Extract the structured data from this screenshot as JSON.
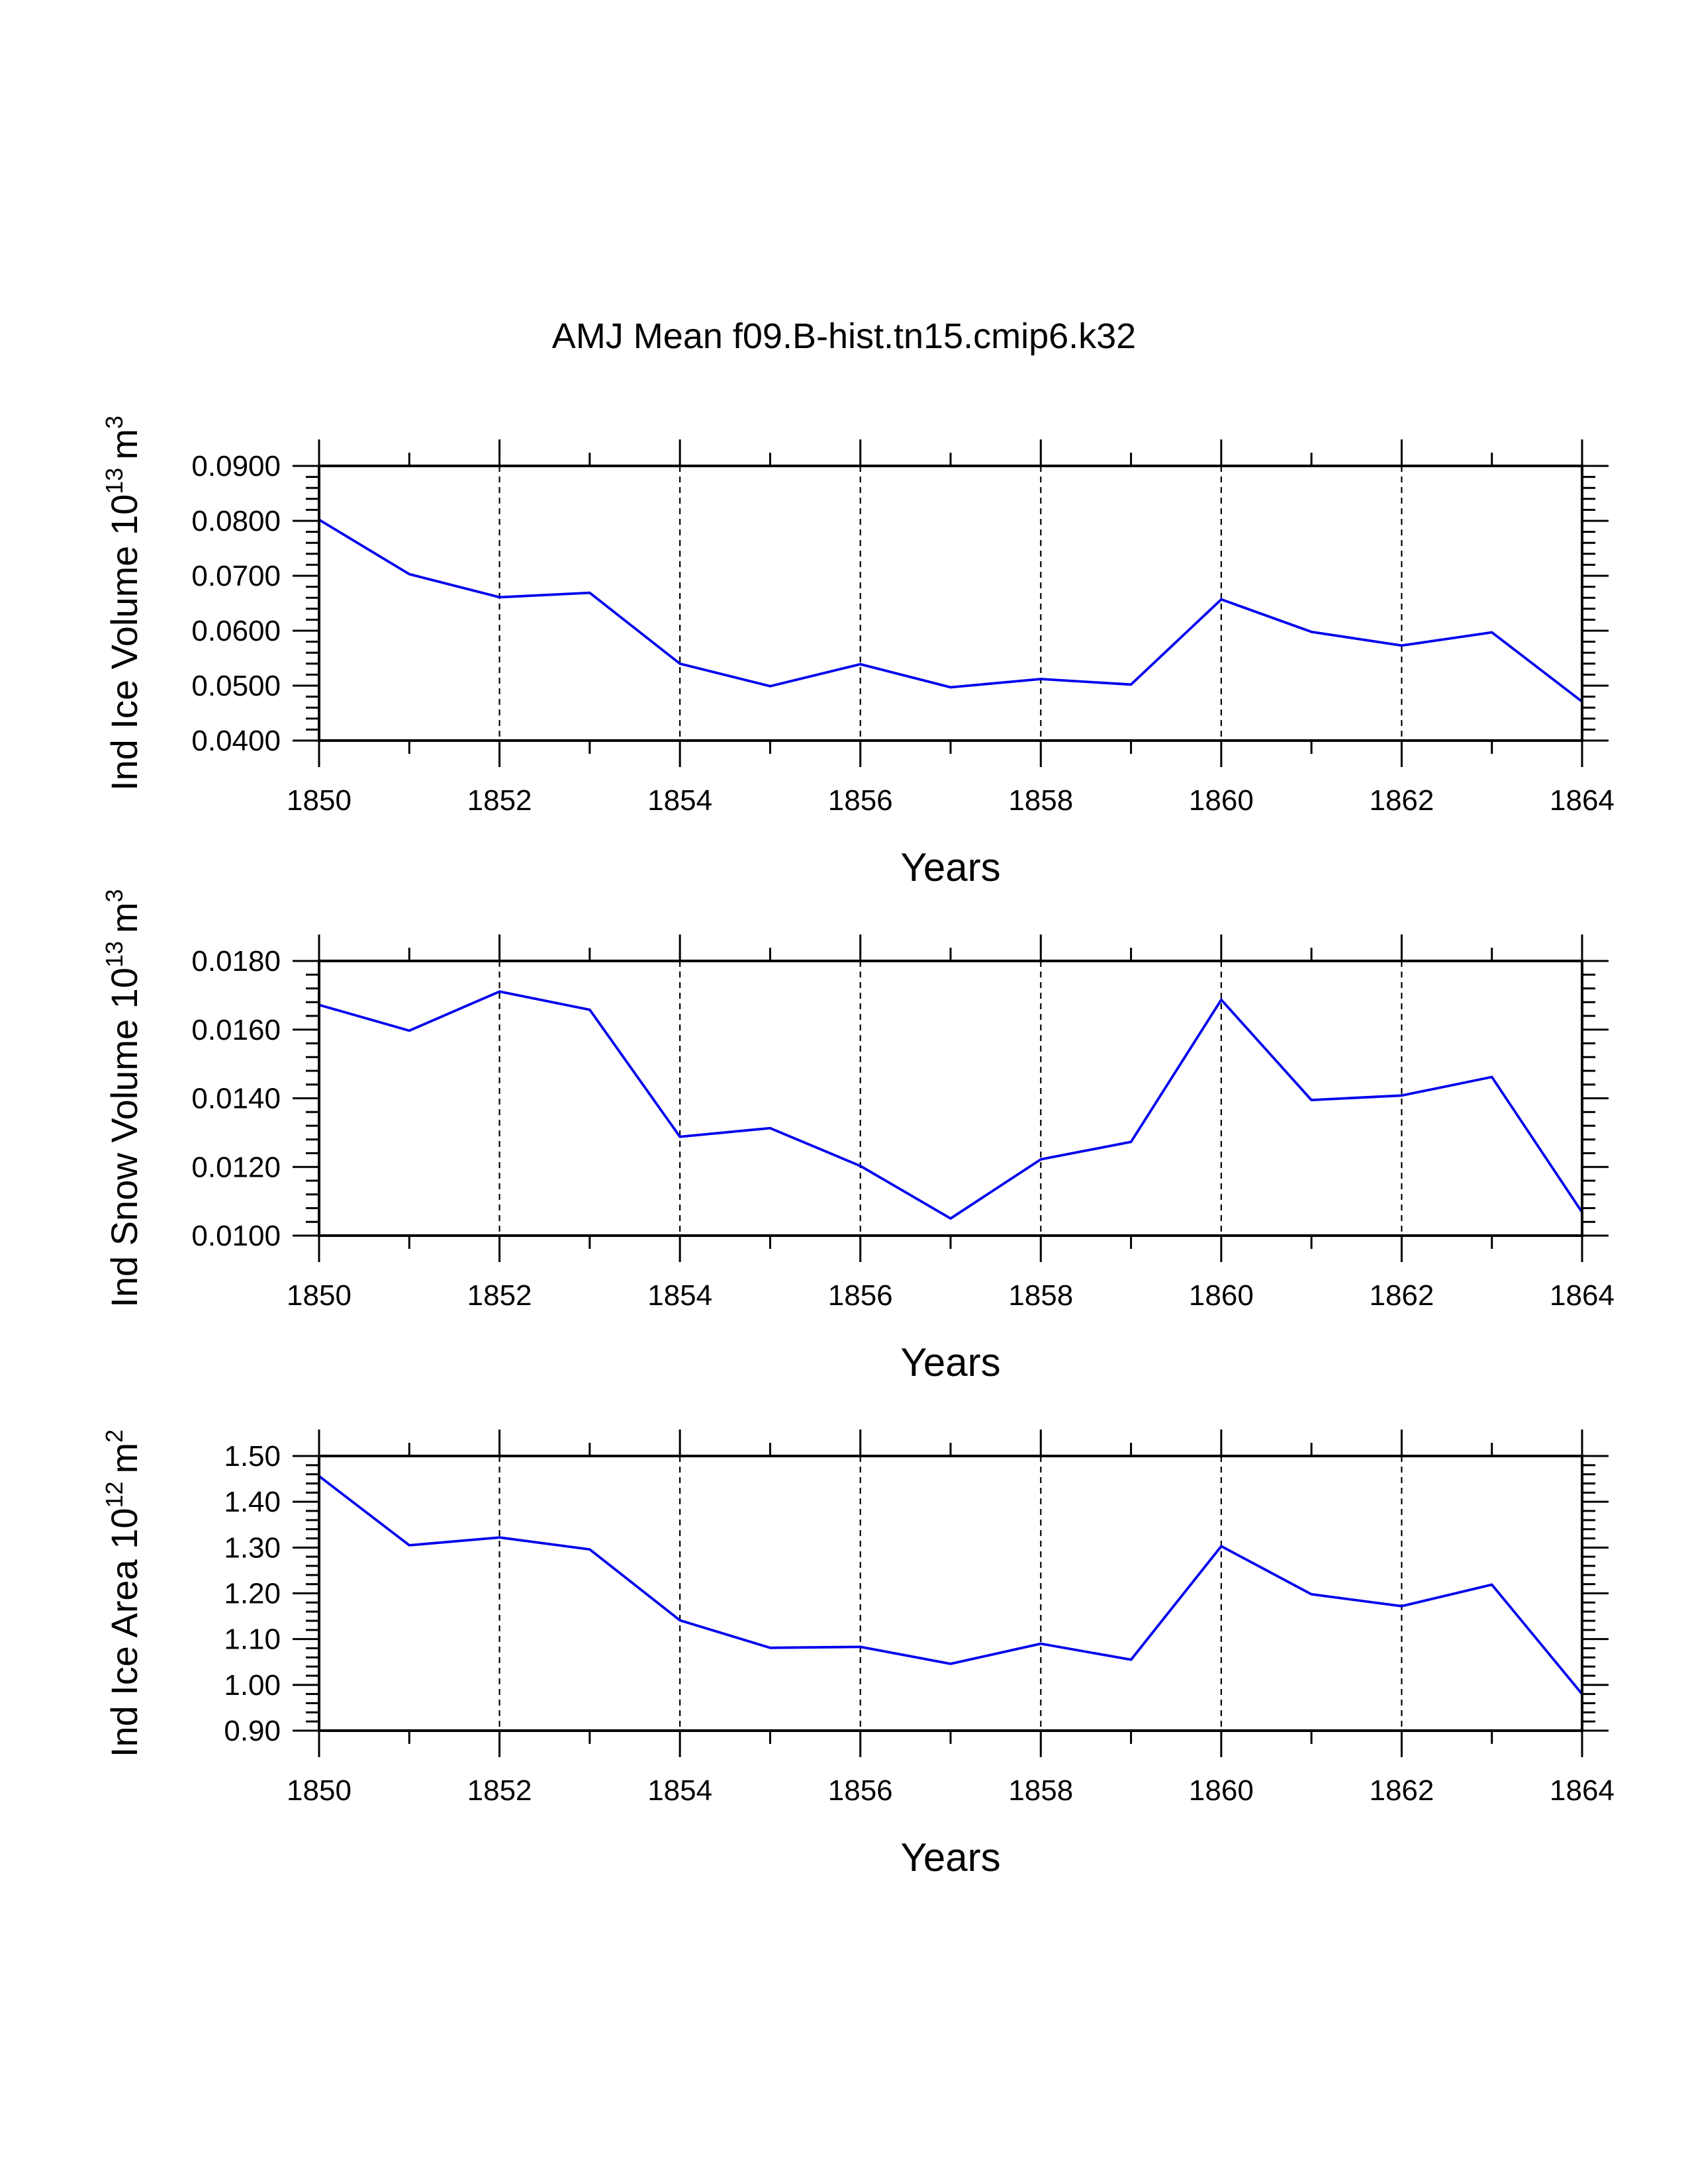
{
  "title": "AMJ Mean f09.B-hist.tn15.cmip6.k32",
  "colors": {
    "line": "#0000ee",
    "axis": "#000000",
    "background": "#ffffff"
  },
  "chart_data": [
    {
      "type": "line",
      "ylabel": {
        "prefix": "Ind Ice Volume 10",
        "exp": "13",
        "unit": "m",
        "unit_exp": "3"
      },
      "xlabel": "Years",
      "xlim": [
        1850,
        1864
      ],
      "xticks": [
        1850,
        1852,
        1854,
        1856,
        1858,
        1860,
        1862,
        1864
      ],
      "ylim": [
        0.04,
        0.09
      ],
      "yticks": [
        "0.0400",
        "0.0500",
        "0.0600",
        "0.0700",
        "0.0800",
        "0.0900"
      ],
      "grid": "vertical-dashed",
      "x": [
        1850,
        1851,
        1852,
        1853,
        1854,
        1855,
        1856,
        1857,
        1858,
        1859,
        1860,
        1861,
        1862,
        1863,
        1864
      ],
      "series": [
        {
          "name": "Ind Ice Volume",
          "values": [
            0.0802,
            0.0703,
            0.0661,
            0.0669,
            0.054,
            0.0499,
            0.0539,
            0.0497,
            0.0512,
            0.0502,
            0.0657,
            0.0598,
            0.0573,
            0.0597,
            0.0471
          ]
        }
      ]
    },
    {
      "type": "line",
      "ylabel": {
        "prefix": "Ind Snow Volume 10",
        "exp": "13",
        "unit": "m",
        "unit_exp": "3"
      },
      "xlabel": "Years",
      "xlim": [
        1850,
        1864
      ],
      "xticks": [
        1850,
        1852,
        1854,
        1856,
        1858,
        1860,
        1862,
        1864
      ],
      "ylim": [
        0.01,
        0.018
      ],
      "yticks": [
        "0.0100",
        "0.0120",
        "0.0140",
        "0.0160",
        "0.0180"
      ],
      "grid": "vertical-dashed",
      "x": [
        1850,
        1851,
        1852,
        1853,
        1854,
        1855,
        1856,
        1857,
        1858,
        1859,
        1860,
        1861,
        1862,
        1863,
        1864
      ],
      "series": [
        {
          "name": "Ind Snow Volume",
          "values": [
            0.01672,
            0.01597,
            0.01711,
            0.01658,
            0.01288,
            0.01313,
            0.01203,
            0.0105,
            0.01222,
            0.01273,
            0.01687,
            0.01395,
            0.01408,
            0.01462,
            0.01068
          ]
        }
      ]
    },
    {
      "type": "line",
      "ylabel": {
        "prefix": "Ind Ice Area 10",
        "exp": "12",
        "unit": "m",
        "unit_exp": "2"
      },
      "xlabel": "Years",
      "xlim": [
        1850,
        1864
      ],
      "xticks": [
        1850,
        1852,
        1854,
        1856,
        1858,
        1860,
        1862,
        1864
      ],
      "ylim": [
        0.9,
        1.5
      ],
      "yticks": [
        "0.90",
        "1.00",
        "1.10",
        "1.20",
        "1.30",
        "1.40",
        "1.50"
      ],
      "grid": "vertical-dashed",
      "x": [
        1850,
        1851,
        1852,
        1853,
        1854,
        1855,
        1856,
        1857,
        1858,
        1859,
        1860,
        1861,
        1862,
        1863,
        1864
      ],
      "series": [
        {
          "name": "Ind Ice Area",
          "values": [
            1.456,
            1.305,
            1.322,
            1.296,
            1.141,
            1.081,
            1.083,
            1.046,
            1.09,
            1.055,
            1.303,
            1.198,
            1.172,
            1.219,
            0.98
          ]
        }
      ]
    }
  ]
}
